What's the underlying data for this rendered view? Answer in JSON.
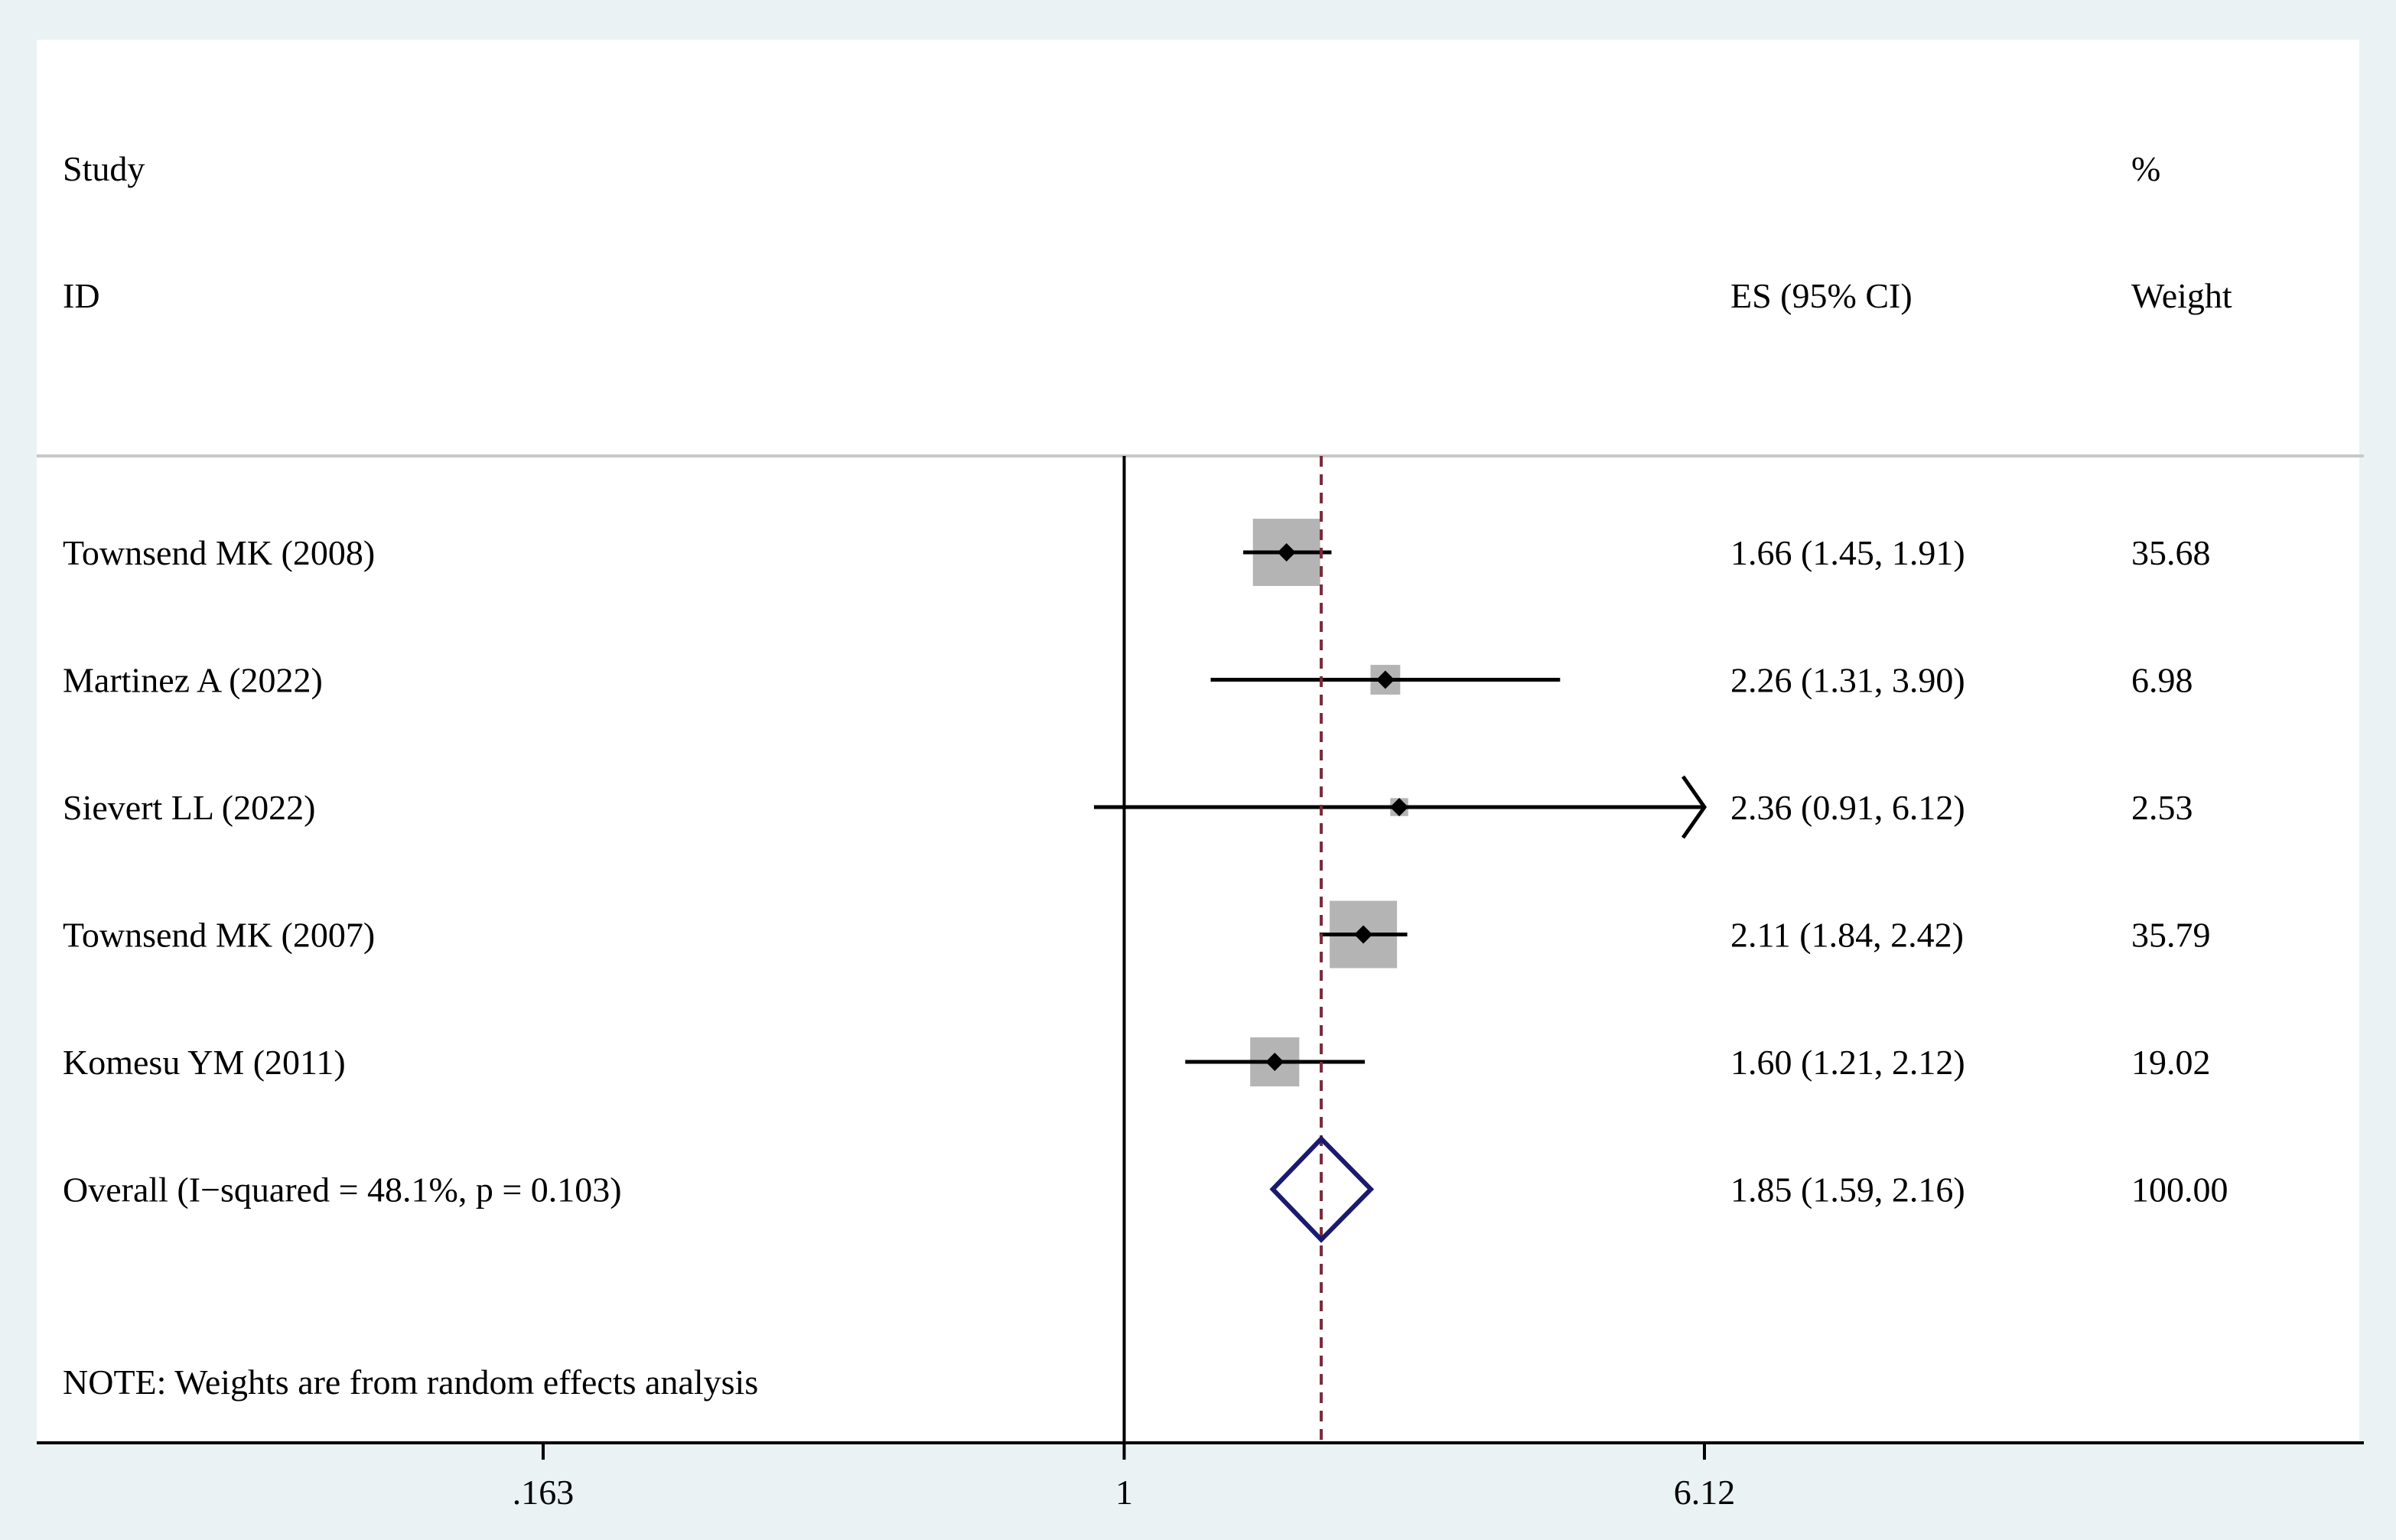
{
  "header": {
    "study_line1": "Study",
    "study_line2": "ID",
    "es_label": "ES (95% CI)",
    "weight_line1": "%",
    "weight_line2": "Weight"
  },
  "chart_data": {
    "type": "forest",
    "x_scale": "log",
    "xlim": [
      0.163,
      6.12
    ],
    "xticks": [
      {
        "value": 0.163,
        "label": ".163"
      },
      {
        "value": 1,
        "label": "1"
      },
      {
        "value": 6.12,
        "label": "6.12"
      }
    ],
    "null_line": 1,
    "studies": [
      {
        "label": "Townsend MK (2008)",
        "es": 1.66,
        "lo": 1.45,
        "hi": 1.91,
        "ci_text": "1.66 (1.45, 1.91)",
        "weight": 35.68,
        "weight_text": "35.68"
      },
      {
        "label": "Martinez A (2022)",
        "es": 2.26,
        "lo": 1.31,
        "hi": 3.9,
        "ci_text": "2.26 (1.31, 3.90)",
        "weight": 6.98,
        "weight_text": "6.98"
      },
      {
        "label": "Sievert LL (2022)",
        "es": 2.36,
        "lo": 0.91,
        "hi": 6.12,
        "ci_text": "2.36 (0.91, 6.12)",
        "weight": 2.53,
        "weight_text": "2.53"
      },
      {
        "label": "Townsend MK (2007)",
        "es": 2.11,
        "lo": 1.84,
        "hi": 2.42,
        "ci_text": "2.11 (1.84, 2.42)",
        "weight": 35.79,
        "weight_text": "35.79"
      },
      {
        "label": "Komesu YM (2011)",
        "es": 1.6,
        "lo": 1.21,
        "hi": 2.12,
        "ci_text": "1.60 (1.21, 2.12)",
        "weight": 19.02,
        "weight_text": "19.02"
      }
    ],
    "overall": {
      "label": "Overall  (I−squared = 48.1%, p = 0.103)",
      "es": 1.85,
      "lo": 1.59,
      "hi": 2.16,
      "ci_text": "1.85 (1.59, 2.16)",
      "weight_text": "100.00"
    },
    "note": "NOTE: Weights are from random effects analysis",
    "colors": {
      "background": "#eaf2f3",
      "plot_region": "#ffffff",
      "weight_box": "#b4b4b4",
      "overall_diamond": "#1a1a6e",
      "overall_line": "#7a2a3a",
      "point": "#000000"
    }
  }
}
